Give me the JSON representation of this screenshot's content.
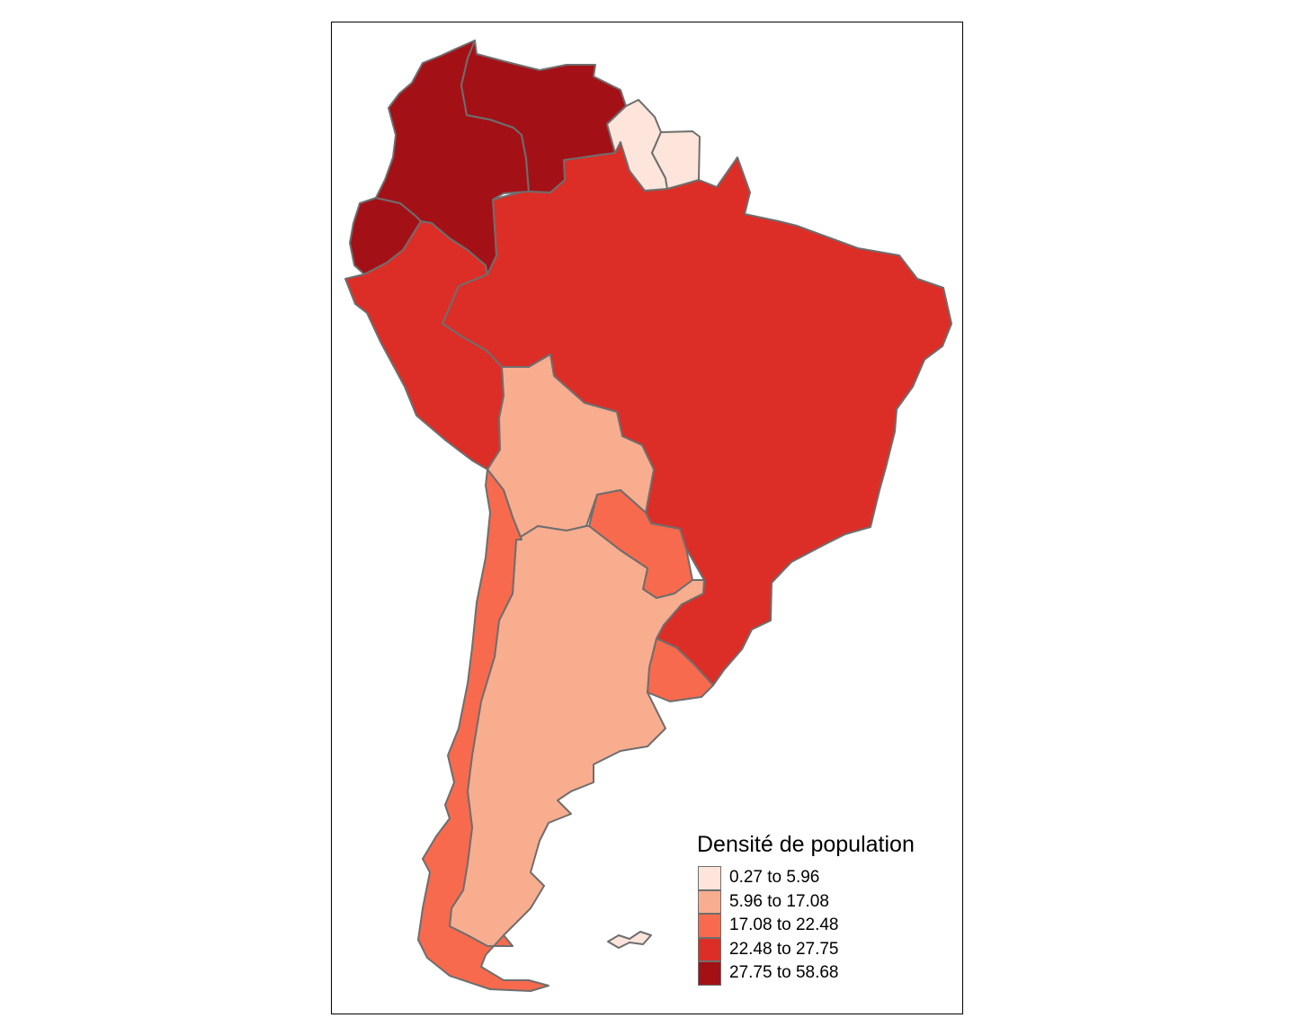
{
  "map": {
    "legend_title": "Densité de population",
    "classes": [
      {
        "label": "0.27 to 5.96",
        "color": "#fde5db"
      },
      {
        "label": "5.96 to 17.08",
        "color": "#f8ad8f"
      },
      {
        "label": "17.08 to 22.48",
        "color": "#f76a4d"
      },
      {
        "label": "22.48 to 27.75",
        "color": "#dc2e27"
      },
      {
        "label": "27.75 to 58.68",
        "color": "#a31117"
      }
    ],
    "countries": [
      {
        "name": "Colombia",
        "class": 4
      },
      {
        "name": "Venezuela",
        "class": 4
      },
      {
        "name": "Ecuador",
        "class": 4
      },
      {
        "name": "Guyana",
        "class": 0
      },
      {
        "name": "Suriname",
        "class": 0
      },
      {
        "name": "Falkland Islands",
        "class": 0
      },
      {
        "name": "Brazil",
        "class": 3
      },
      {
        "name": "Peru",
        "class": 3
      },
      {
        "name": "Bolivia",
        "class": 1
      },
      {
        "name": "Argentina",
        "class": 1
      },
      {
        "name": "Paraguay",
        "class": 2
      },
      {
        "name": "Uruguay",
        "class": 2
      },
      {
        "name": "Chile",
        "class": 2
      }
    ]
  }
}
